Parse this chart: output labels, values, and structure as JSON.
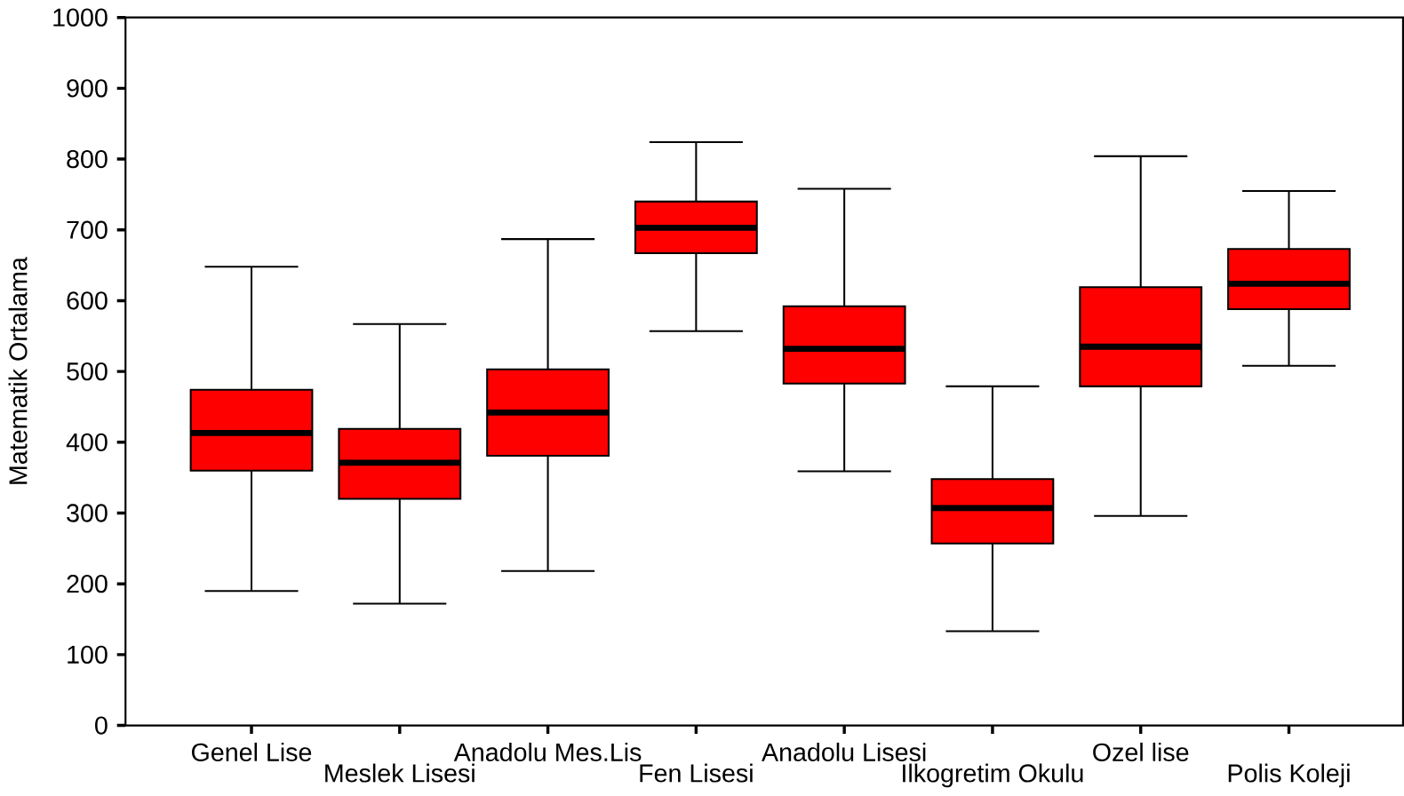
{
  "chart_data": {
    "type": "box",
    "ylabel": "Matematik Ortalama",
    "categories": [
      "Genel Lise",
      "Meslek Lisesi",
      "Anadolu Mes.Lis",
      "Fen Lisesi",
      "Anadolu Lisesi",
      "Ilkogretim Okulu",
      "Ozel lise",
      "Polis Koleji"
    ],
    "boxes": [
      {
        "low": 190,
        "q1": 360,
        "median": 413,
        "q3": 474,
        "high": 648
      },
      {
        "low": 172,
        "q1": 320,
        "median": 371,
        "q3": 419,
        "high": 567
      },
      {
        "low": 218,
        "q1": 381,
        "median": 442,
        "q3": 503,
        "high": 687
      },
      {
        "low": 557,
        "q1": 667,
        "median": 703,
        "q3": 740,
        "high": 824
      },
      {
        "low": 359,
        "q1": 483,
        "median": 532,
        "q3": 592,
        "high": 758
      },
      {
        "low": 133,
        "q1": 257,
        "median": 307,
        "q3": 348,
        "high": 479
      },
      {
        "low": 296,
        "q1": 479,
        "median": 535,
        "q3": 619,
        "high": 804
      },
      {
        "low": 508,
        "q1": 588,
        "median": 624,
        "q3": 673,
        "high": 755
      }
    ],
    "color": "#ff0000",
    "ylim": [
      0,
      1000
    ],
    "yticks": [
      0,
      100,
      200,
      300,
      400,
      500,
      600,
      700,
      800,
      900,
      1000
    ]
  }
}
